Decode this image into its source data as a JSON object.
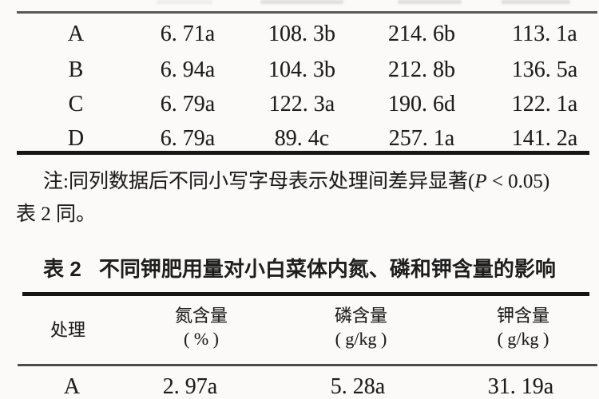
{
  "table1": {
    "rows": [
      {
        "treatment": "A",
        "values": [
          "6. 71a",
          "108. 3b",
          "214. 6b",
          "113. 1a"
        ]
      },
      {
        "treatment": "B",
        "values": [
          "6. 94a",
          "104. 3b",
          "212. 8b",
          "136. 5a"
        ]
      },
      {
        "treatment": "C",
        "values": [
          "6. 79a",
          "122. 3a",
          "190. 6d",
          "122. 1a"
        ]
      },
      {
        "treatment": "D",
        "values": [
          "6. 79a",
          "89. 4c",
          "257. 1a",
          "141. 2a"
        ]
      }
    ],
    "note": {
      "prefix": "注:同列数据后不同小写字母表示处理间差异显著(",
      "p_symbol": "P",
      "suffix": " < 0.05)",
      "line2": "表 2 同。"
    }
  },
  "table2": {
    "caption_label": "表 2",
    "caption_text": "不同钾肥用量对小白菜体内氮、磷和钾含量的影响",
    "headers": [
      {
        "title": "处理",
        "unit": ""
      },
      {
        "title": "氮含量",
        "unit": "( % )"
      },
      {
        "title": "磷含量",
        "unit": "( g/kg )"
      },
      {
        "title": "钾含量",
        "unit": "( g/kg )"
      }
    ],
    "rows": [
      {
        "treatment": "A",
        "values": [
          "2. 97a",
          "5. 28a",
          "31. 19a"
        ]
      }
    ]
  },
  "colors": {
    "background": "#fbfaf9",
    "text": "#1e1e1e",
    "rule_dark": "#141414",
    "rule_gray": "#585858"
  }
}
